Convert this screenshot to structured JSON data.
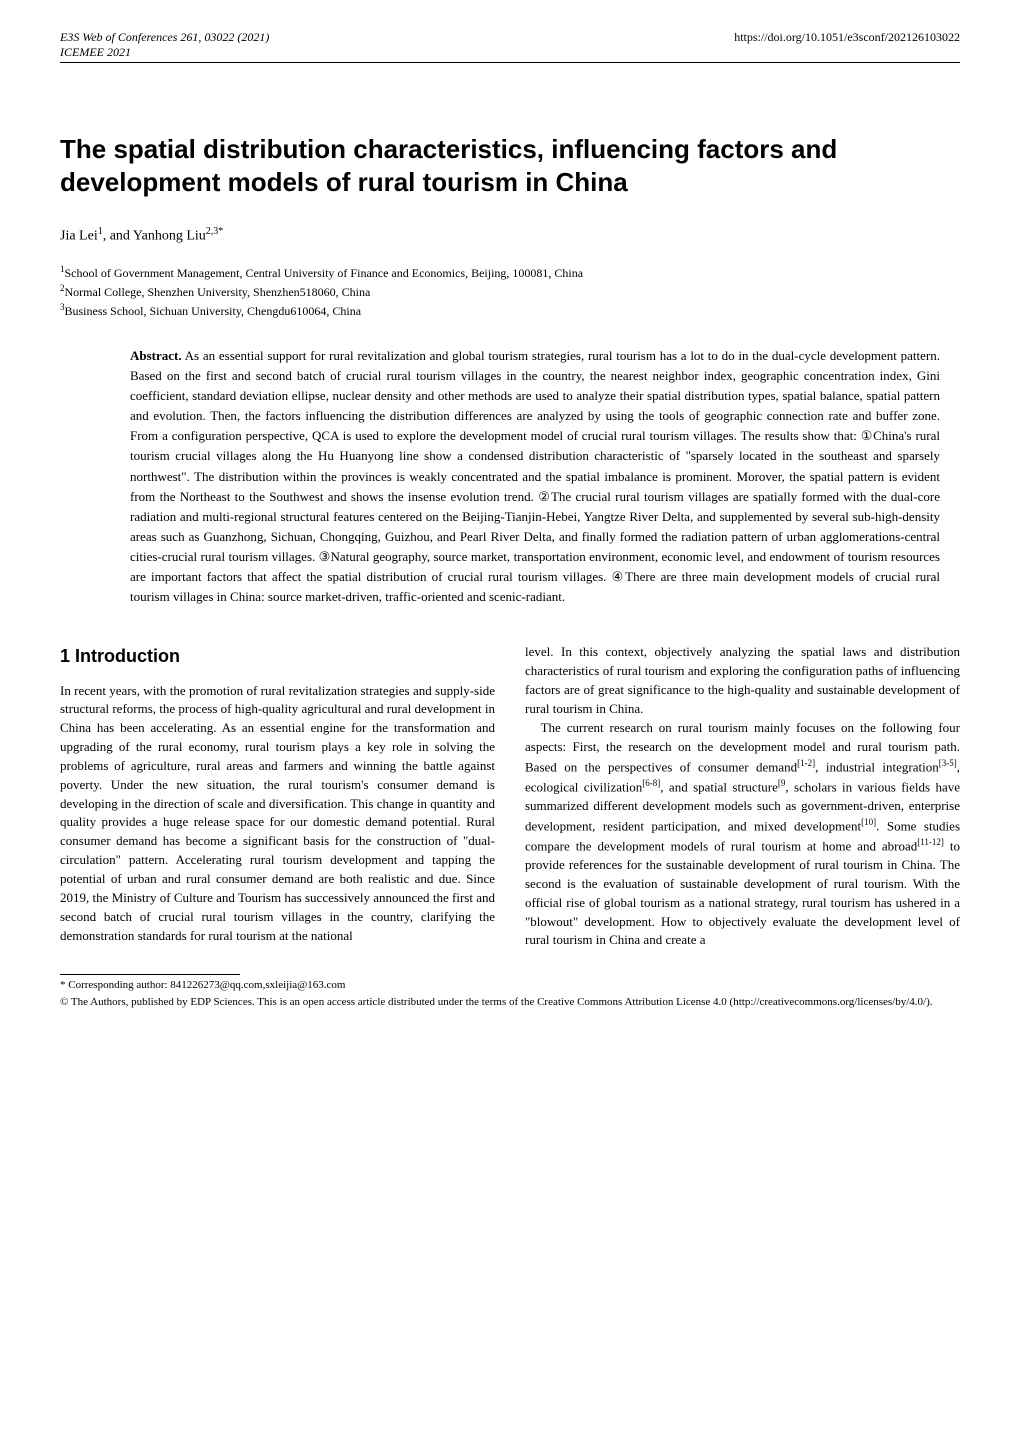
{
  "header": {
    "left_line1": "E3S Web of Conferences 261, 03022 (2021)",
    "left_line2": "ICEMEE 2021",
    "right": "https://doi.org/10.1051/e3sconf/202126103022"
  },
  "title": "The spatial distribution characteristics, influencing factors and development models of rural tourism in China",
  "authors": {
    "line": "Jia Lei",
    "sup1": "1",
    "mid": ", and Yanhong Liu",
    "sup2": "2,3*"
  },
  "affiliations": [
    {
      "num": "1",
      "text": "School of Government Management, Central University of Finance and Economics, Beijing, 100081, China"
    },
    {
      "num": "2",
      "text": "Normal College, Shenzhen University, Shenzhen518060, China"
    },
    {
      "num": "3",
      "text": "Business School, Sichuan University, Chengdu610064, China"
    }
  ],
  "abstract": {
    "label": "Abstract.",
    "text": " As an essential support for rural revitalization and global tourism strategies, rural tourism has a lot to do in the dual-cycle development pattern. Based on the first and second batch of crucial rural tourism villages in the country, the nearest neighbor index, geographic concentration index, Gini coefficient, standard deviation ellipse, nuclear density and other methods are used to analyze their spatial distribution types, spatial balance, spatial pattern and evolution. Then, the factors influencing the distribution differences are analyzed by using the tools of geographic connection rate and buffer zone. From a configuration perspective, QCA is used to explore the development model of crucial rural tourism villages. The results show that: ①China's rural tourism crucial villages along the Hu Huanyong line show a condensed distribution characteristic of \"sparsely located in the southeast and sparsely northwest\". The distribution within the provinces is weakly concentrated and the spatial imbalance is prominent. Morover, the spatial pattern is evident from the Northeast to the Southwest and shows the insense evolution trend. ②The crucial rural tourism villages are spatially formed with the dual-core radiation and multi-regional structural features centered on the Beijing-Tianjin-Hebei, Yangtze River Delta, and supplemented by several sub-high-density areas such as Guanzhong, Sichuan, Chongqing, Guizhou, and Pearl River Delta, and finally formed the radiation pattern of urban agglomerations-central cities-crucial rural tourism villages. ③Natural geography, source market, transportation environment, economic level, and endowment of tourism resources are important factors that affect the spatial distribution of crucial rural tourism villages. ④There are three main development models of crucial rural tourism villages in China: source market-driven, traffic-oriented and scenic-radiant."
  },
  "section_heading": "1 Introduction",
  "col_left_p1": "In recent years, with the promotion of rural revitalization strategies and supply-side structural reforms, the process of high-quality agricultural and rural development in China has been accelerating. As an essential engine for the transformation and upgrading of the rural economy, rural tourism plays a key role in solving the problems of agriculture, rural areas and farmers and winning the battle against poverty. Under the new situation, the rural tourism's consumer demand is developing in the direction of scale and diversification. This change in quantity and quality provides a huge release space for our domestic demand potential. Rural consumer demand has become a significant basis for the construction of \"dual-circulation\" pattern. Accelerating rural tourism development and tapping the potential of urban and rural consumer demand are both realistic and due. Since 2019, the Ministry of Culture and Tourism has successively announced the first and second batch of crucial rural tourism villages in the country, clarifying the demonstration standards for rural tourism at the national",
  "col_right_p1": "level. In this context, objectively analyzing the spatial laws and distribution characteristics of rural tourism and exploring the configuration paths of influencing factors are of great significance to the high-quality and sustainable development of rural tourism in China.",
  "col_right_p2_a": "The current research on rural tourism mainly focuses on the following four aspects: First, the research on the development model and rural tourism path. Based on the perspectives of consumer demand",
  "ref1": "[1-2]",
  "col_right_p2_b": ", industrial integration",
  "ref2": "[3-5]",
  "col_right_p2_c": ", ecological civilization",
  "ref3": "[6-8]",
  "col_right_p2_d": ", and spatial structure",
  "ref4": "[9",
  "col_right_p2_e": ", scholars in various fields have summarized different development models such as government-driven, enterprise development, resident participation, and mixed development",
  "ref5": "[10]",
  "col_right_p2_f": ". Some studies compare the development models of rural tourism at home and abroad",
  "ref6": "[11-12]",
  "col_right_p2_g": " to provide references for the sustainable development of rural tourism in China. The second is the evaluation of sustainable development of rural tourism. With the official rise of global tourism as a national strategy, rural tourism has ushered in a \"blowout\" development. How to objectively evaluate the development level of rural tourism in China and create a",
  "footnote": "* Corresponding author: 841226273@qq.com,sxleijia@163.com",
  "license": "© The Authors, published by EDP Sciences. This is an open access article distributed under the terms of the Creative Commons Attribution License 4.0 (http://creativecommons.org/licenses/by/4.0/)."
}
